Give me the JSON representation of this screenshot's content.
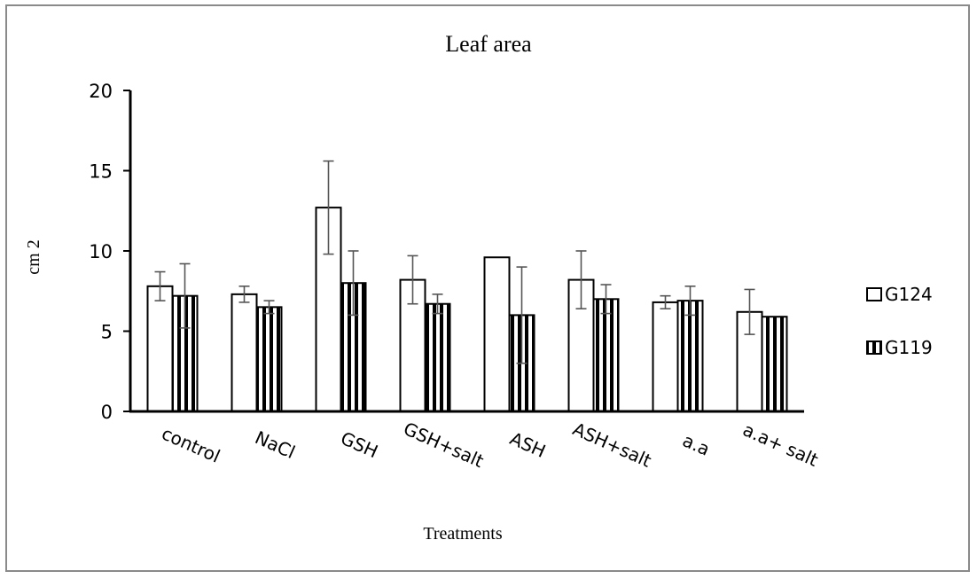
{
  "chart_data": {
    "type": "bar",
    "title": "Leaf area",
    "xlabel": "Treatments",
    "ylabel": "cm 2",
    "ylim": [
      0,
      20
    ],
    "yticks": [
      0,
      5,
      10,
      15,
      20
    ],
    "grid": false,
    "legend_position": "right",
    "categories": [
      "control",
      "NaCl",
      "GSH",
      "GSH+salt",
      "ASH",
      "ASH+salt",
      "a.a",
      "a.a+ salt"
    ],
    "series": [
      {
        "name": "G124",
        "pattern": "solid",
        "values": [
          7.8,
          7.3,
          12.7,
          8.2,
          9.6,
          8.2,
          6.8,
          6.2
        ],
        "errors": [
          0.9,
          0.5,
          2.9,
          1.5,
          0.0,
          1.8,
          0.4,
          1.4
        ]
      },
      {
        "name": "G119",
        "pattern": "striped",
        "values": [
          7.2,
          6.5,
          8.0,
          6.7,
          6.0,
          7.0,
          6.9,
          5.9
        ],
        "errors": [
          2.0,
          0.4,
          2.0,
          0.6,
          3.0,
          0.9,
          0.9,
          0.0
        ]
      }
    ],
    "colors": {
      "fill": "#ffffff",
      "stroke": "#000000",
      "error": "#555555",
      "frame": "#8a8a8a"
    }
  }
}
